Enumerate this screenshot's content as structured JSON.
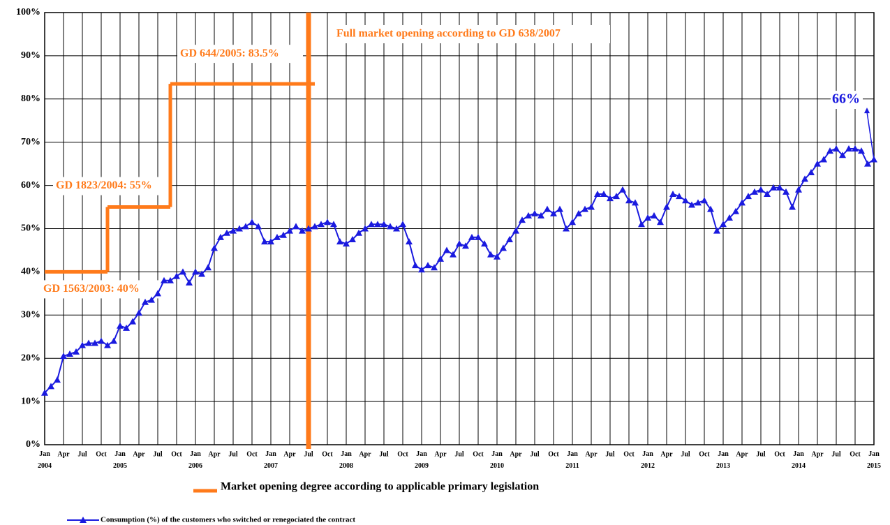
{
  "chart_data": {
    "type": "line",
    "categories": [
      "Jan 2004",
      null,
      null,
      "Apr",
      null,
      null,
      "Jul",
      null,
      null,
      "Oct",
      null,
      null,
      "Jan 2005",
      null,
      null,
      "Apr",
      null,
      null,
      "Jul",
      null,
      null,
      "Oct",
      null,
      null,
      "Jan 2006",
      null,
      null,
      "Apr",
      null,
      null,
      "Jul",
      null,
      null,
      "Oct",
      null,
      null,
      "Jan 2007",
      null,
      null,
      "Apr",
      null,
      null,
      "Jul",
      null,
      null,
      "Oct",
      null,
      null,
      "Jan 2008",
      null,
      null,
      "Apr",
      null,
      null,
      "Jul",
      null,
      null,
      "Oct",
      null,
      null,
      "Jan 2009",
      null,
      null,
      "Apr",
      null,
      null,
      "Jul",
      null,
      null,
      "Oct",
      null,
      null,
      "Jan 2010",
      null,
      null,
      "Apr",
      null,
      null,
      "Jul",
      null,
      null,
      "Oct",
      null,
      null,
      "Jan 2011",
      null,
      null,
      "Apr",
      null,
      null,
      "Jul",
      null,
      null,
      "Oct",
      null,
      null,
      "Jan 2012",
      null,
      null,
      "Apr",
      null,
      null,
      "Jul",
      null,
      null,
      "Oct",
      null,
      null,
      "Jan 2013",
      null,
      null,
      "Apr",
      null,
      null,
      "Jul",
      null,
      null,
      "Oct",
      null,
      null,
      "Jan 2014",
      null,
      null,
      "Apr",
      null,
      null,
      "Jul",
      null,
      null,
      "Oct",
      null,
      null,
      "Jan 2015"
    ],
    "series": [
      {
        "name": "Consumption (%) of the customers who switched or renegociated the contract",
        "color": "#1a1adf",
        "values": [
          12,
          13.5,
          15,
          20.5,
          21,
          21.5,
          23,
          23.5,
          23.5,
          24,
          23,
          24,
          27.5,
          27,
          28.5,
          30.5,
          33,
          33.5,
          35,
          38,
          38,
          39,
          40,
          37.5,
          40,
          39.5,
          41,
          45.5,
          48,
          49,
          49.5,
          50,
          50.5,
          51.5,
          50.5,
          47,
          47,
          48,
          48.5,
          49.5,
          50.5,
          49.5,
          50,
          50.5,
          51,
          51.5,
          51,
          47,
          46.5,
          47.5,
          49,
          50,
          51,
          51,
          51,
          50.5,
          50,
          51,
          47,
          41.5,
          40.5,
          41.5,
          41,
          43,
          45,
          44,
          46.5,
          46,
          48,
          48,
          46.5,
          44,
          43.5,
          45.5,
          47.5,
          49.5,
          52,
          53,
          53.5,
          53,
          54.5,
          53.5,
          54.5,
          50,
          51.5,
          53.5,
          54.5,
          55,
          58,
          58,
          57,
          57.5,
          59,
          56.5,
          56,
          51,
          52.5,
          53,
          51.5,
          55,
          58,
          57.5,
          56.5,
          55.5,
          56,
          56.5,
          54.5,
          49.5,
          51,
          52.5,
          54,
          56,
          57.5,
          58.5,
          59,
          58,
          59.5,
          59.5,
          58.5,
          55,
          59,
          61.5,
          63,
          65,
          66,
          68,
          68.5,
          67,
          68.5,
          68.5,
          68,
          65,
          66
        ]
      }
    ],
    "legislation": {
      "name": "Market opening degree according to applicable primary legislation",
      "color": "#ff7a1a",
      "steps": [
        {
          "label": "GD 1563/2003: 40%",
          "value": 40,
          "start": "2004-01",
          "end": "2004-11"
        },
        {
          "label": "GD 1823/2004:  55%",
          "value": 55,
          "start": "2004-11",
          "end": "2005-09"
        },
        {
          "label": "GD 644/2005:  83.5%",
          "value": 83.5,
          "start": "2005-09",
          "end": "2007-08"
        }
      ],
      "full_opening": {
        "label": "Full market opening according to GD 638/2007",
        "date": "2007-07"
      }
    },
    "annotation": {
      "text": "66%",
      "value": 66
    },
    "ylim": [
      0,
      100
    ],
    "yticks": [
      {
        "value": 0,
        "label": "0%"
      },
      {
        "value": 10,
        "label": "10%"
      },
      {
        "value": 20,
        "label": "20%"
      },
      {
        "value": 30,
        "label": "30%"
      },
      {
        "value": 40,
        "label": "40%"
      },
      {
        "value": 50,
        "label": "50%"
      },
      {
        "value": 60,
        "label": "60%"
      },
      {
        "value": 70,
        "label": "70%"
      },
      {
        "value": 80,
        "label": "80%"
      },
      {
        "value": 90,
        "label": "90%"
      },
      {
        "value": 100,
        "label": "100%"
      }
    ],
    "grid": true
  }
}
